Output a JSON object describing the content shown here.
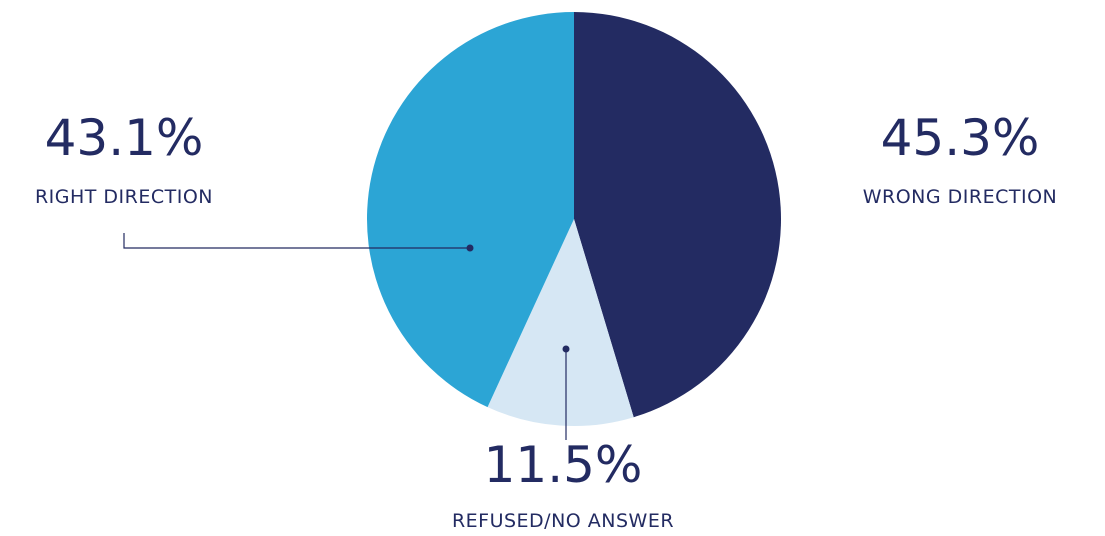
{
  "chart_data": {
    "type": "pie",
    "categories": [
      "WRONG DIRECTION",
      "REFUSED/NO ANSWER",
      "RIGHT DIRECTION"
    ],
    "values": [
      45.3,
      11.5,
      43.1
    ],
    "value_labels": [
      "45.3%",
      "11.5%",
      "43.1%"
    ],
    "colors": [
      "#232b62",
      "#d6e7f4",
      "#2ca5d5"
    ]
  }
}
